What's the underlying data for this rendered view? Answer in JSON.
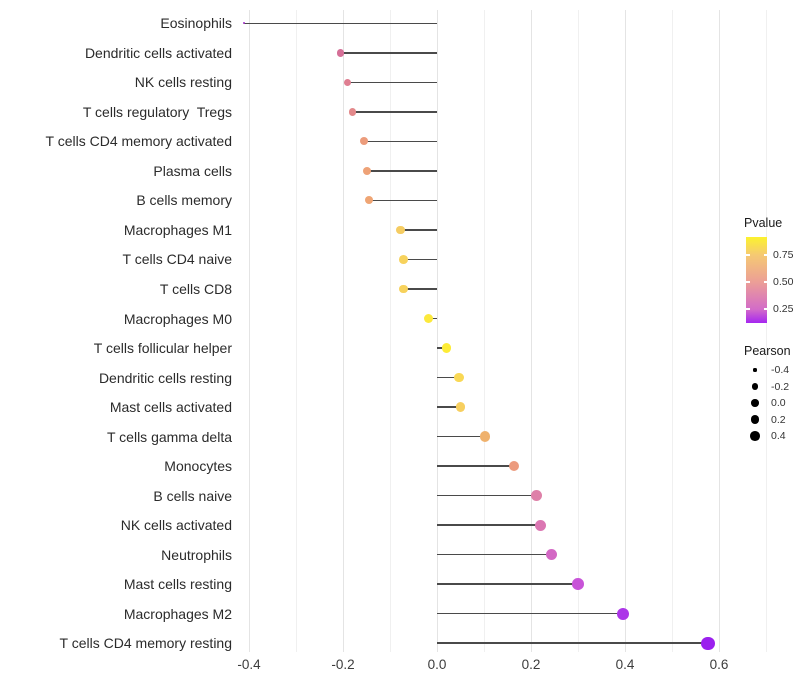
{
  "chart_data": {
    "type": "lollipop",
    "title": "",
    "xlabel": "",
    "ylabel": "",
    "baseline_value": 0.0,
    "stick_color": "#4a4a4a",
    "x_axis": {
      "range": [
        -0.4255,
        0.7255
      ],
      "ticks": [
        {
          "label": "-0.4",
          "value": -0.4
        },
        {
          "label": "-0.2",
          "value": -0.2
        },
        {
          "label": "0.0",
          "value": 0.0
        },
        {
          "label": "0.2",
          "value": 0.2
        },
        {
          "label": "0.4",
          "value": 0.4
        },
        {
          "label": "0.6",
          "value": 0.6
        }
      ],
      "gridline_values": [
        -0.4,
        -0.3,
        -0.2,
        -0.1,
        0.0,
        0.1,
        0.2,
        0.3,
        0.4,
        0.5,
        0.6,
        0.7
      ]
    },
    "points": [
      {
        "category": "Eosinophils",
        "pearson": -0.41,
        "color": "#A132C6"
      },
      {
        "category": "Dendritic cells activated",
        "pearson": -0.205,
        "color": "#D56F97"
      },
      {
        "category": "NK cells resting",
        "pearson": -0.19,
        "color": "#DF7E91"
      },
      {
        "category": "T cells regulatory  Tregs",
        "pearson": -0.18,
        "color": "#E3898B"
      },
      {
        "category": "T cells CD4 memory activated",
        "pearson": -0.155,
        "color": "#EC9C7C"
      },
      {
        "category": "Plasma cells",
        "pearson": -0.148,
        "color": "#EEA277"
      },
      {
        "category": "B cells memory",
        "pearson": -0.145,
        "color": "#EFA574"
      },
      {
        "category": "Macrophages M1",
        "pearson": -0.078,
        "color": "#F5CC62"
      },
      {
        "category": "T cells CD4 naive",
        "pearson": -0.072,
        "color": "#F7D25C"
      },
      {
        "category": "T cells CD8",
        "pearson": -0.072,
        "color": "#F7D25C"
      },
      {
        "category": "Macrophages M0",
        "pearson": -0.018,
        "color": "#FCE93C"
      },
      {
        "category": "T cells follicular helper",
        "pearson": 0.02,
        "color": "#FDEC36"
      },
      {
        "category": "Dendritic cells resting",
        "pearson": 0.047,
        "color": "#F9D855"
      },
      {
        "category": "Mast cells activated",
        "pearson": 0.05,
        "color": "#F7CF5F"
      },
      {
        "category": "T cells gamma delta",
        "pearson": 0.102,
        "color": "#EFB16C"
      },
      {
        "category": "Monocytes",
        "pearson": 0.164,
        "color": "#EC9B7E"
      },
      {
        "category": "B cells naive",
        "pearson": 0.212,
        "color": "#DE80A8"
      },
      {
        "category": "NK cells activated",
        "pearson": 0.221,
        "color": "#DB76B2"
      },
      {
        "category": "Neutrophils",
        "pearson": 0.244,
        "color": "#D368C4"
      },
      {
        "category": "Mast cells resting",
        "pearson": 0.3,
        "color": "#C853D8"
      },
      {
        "category": "Macrophages M2",
        "pearson": 0.396,
        "color": "#AC35E8"
      },
      {
        "category": "T cells CD4 memory resting",
        "pearson": 0.577,
        "color": "#9B20EE"
      }
    ],
    "legend": {
      "pvalue": {
        "title": "Pvalue",
        "tick_labels": [
          "0.75",
          "0.50",
          "0.25"
        ],
        "tick_positions_pct": [
          21,
          52,
          84
        ],
        "gradient_stops": [
          {
            "color": "#FCF22E",
            "pct": 0
          },
          {
            "color": "#F5C973",
            "pct": 21
          },
          {
            "color": "#EC9F96",
            "pct": 52
          },
          {
            "color": "#D36CC8",
            "pct": 84
          },
          {
            "color": "#A527F0",
            "pct": 100
          }
        ]
      },
      "pearson": {
        "title": "Pearson",
        "dot_color": "#000000",
        "entries": [
          {
            "label": "-0.4",
            "value": -0.4
          },
          {
            "label": "-0.2",
            "value": -0.2
          },
          {
            "label": "0.0",
            "value": 0.0
          },
          {
            "label": "0.2",
            "value": 0.2
          },
          {
            "label": "0.4",
            "value": 0.4
          }
        ]
      }
    }
  }
}
